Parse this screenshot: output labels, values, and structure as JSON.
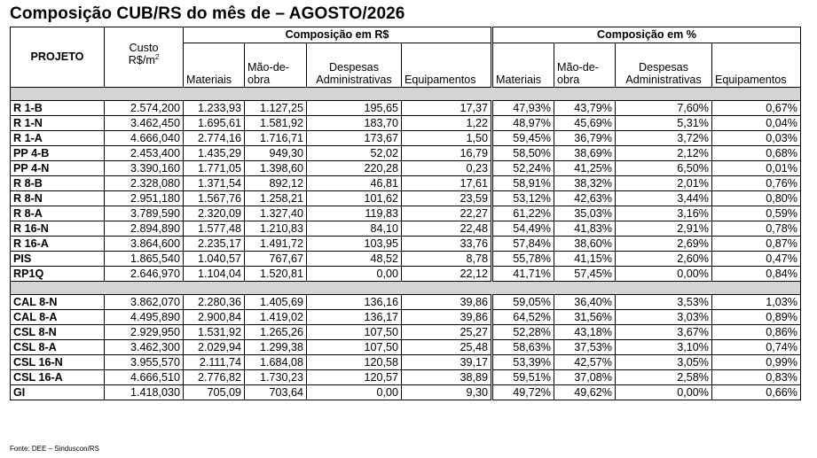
{
  "title": "Composição CUB/RS do mês de – AGOSTO/2026",
  "headers": {
    "projeto": "PROJETO",
    "custo_line1": "Custo",
    "custo_line2": "R$/m",
    "custo_sup": "2",
    "group_rs": "Composição em R$",
    "group_pct": "Composição em %",
    "materiais": "Materiais",
    "mao_line1": "Mão-de-",
    "mao_line2": "obra",
    "despesas_line1": "Despesas",
    "despesas_line2": "Administrativas",
    "equipamentos": "Equipamentos"
  },
  "group1": [
    {
      "projeto": "R 1-B",
      "custo": "2.574,200",
      "mat": "1.233,93",
      "mao": "1.127,25",
      "desp": "195,65",
      "equip": "17,37",
      "mat_p": "47,93%",
      "mao_p": "43,79%",
      "desp_p": "7,60%",
      "equip_p": "0,67%"
    },
    {
      "projeto": "R 1-N",
      "custo": "3.462,450",
      "mat": "1.695,61",
      "mao": "1.581,92",
      "desp": "183,70",
      "equip": "1,22",
      "mat_p": "48,97%",
      "mao_p": "45,69%",
      "desp_p": "5,31%",
      "equip_p": "0,04%"
    },
    {
      "projeto": "R 1-A",
      "custo": "4.666,040",
      "mat": "2.774,16",
      "mao": "1.716,71",
      "desp": "173,67",
      "equip": "1,50",
      "mat_p": "59,45%",
      "mao_p": "36,79%",
      "desp_p": "3,72%",
      "equip_p": "0,03%"
    },
    {
      "projeto": "PP 4-B",
      "custo": "2.453,400",
      "mat": "1.435,29",
      "mao": "949,30",
      "desp": "52,02",
      "equip": "16,79",
      "mat_p": "58,50%",
      "mao_p": "38,69%",
      "desp_p": "2,12%",
      "equip_p": "0,68%"
    },
    {
      "projeto": "PP 4-N",
      "custo": "3.390,160",
      "mat": "1.771,05",
      "mao": "1.398,60",
      "desp": "220,28",
      "equip": "0,23",
      "mat_p": "52,24%",
      "mao_p": "41,25%",
      "desp_p": "6,50%",
      "equip_p": "0,01%"
    },
    {
      "projeto": "R 8-B",
      "custo": "2.328,080",
      "mat": "1.371,54",
      "mao": "892,12",
      "desp": "46,81",
      "equip": "17,61",
      "mat_p": "58,91%",
      "mao_p": "38,32%",
      "desp_p": "2,01%",
      "equip_p": "0,76%"
    },
    {
      "projeto": "R 8-N",
      "custo": "2.951,180",
      "mat": "1.567,76",
      "mao": "1.258,21",
      "desp": "101,62",
      "equip": "23,59",
      "mat_p": "53,12%",
      "mao_p": "42,63%",
      "desp_p": "3,44%",
      "equip_p": "0,80%"
    },
    {
      "projeto": "R 8-A",
      "custo": "3.789,590",
      "mat": "2.320,09",
      "mao": "1.327,40",
      "desp": "119,83",
      "equip": "22,27",
      "mat_p": "61,22%",
      "mao_p": "35,03%",
      "desp_p": "3,16%",
      "equip_p": "0,59%"
    },
    {
      "projeto": "R 16-N",
      "custo": "2.894,890",
      "mat": "1.577,48",
      "mao": "1.210,83",
      "desp": "84,10",
      "equip": "22,48",
      "mat_p": "54,49%",
      "mao_p": "41,83%",
      "desp_p": "2,91%",
      "equip_p": "0,78%"
    },
    {
      "projeto": "R 16-A",
      "custo": "3.864,600",
      "mat": "2.235,17",
      "mao": "1.491,72",
      "desp": "103,95",
      "equip": "33,76",
      "mat_p": "57,84%",
      "mao_p": "38,60%",
      "desp_p": "2,69%",
      "equip_p": "0,87%"
    },
    {
      "projeto": "PIS",
      "custo": "1.865,540",
      "mat": "1.040,57",
      "mao": "767,67",
      "desp": "48,52",
      "equip": "8,78",
      "mat_p": "55,78%",
      "mao_p": "41,15%",
      "desp_p": "2,60%",
      "equip_p": "0,47%"
    },
    {
      "projeto": "RP1Q",
      "custo": "2.646,970",
      "mat": "1.104,04",
      "mao": "1.520,81",
      "desp": "0,00",
      "equip": "22,12",
      "mat_p": "41,71%",
      "mao_p": "57,45%",
      "desp_p": "0,00%",
      "equip_p": "0,84%"
    }
  ],
  "group2": [
    {
      "projeto": "CAL 8-N",
      "custo": "3.862,070",
      "mat": "2.280,36",
      "mao": "1.405,69",
      "desp": "136,16",
      "equip": "39,86",
      "mat_p": "59,05%",
      "mao_p": "36,40%",
      "desp_p": "3,53%",
      "equip_p": "1,03%"
    },
    {
      "projeto": "CAL 8-A",
      "custo": "4.495,890",
      "mat": "2.900,84",
      "mao": "1.419,02",
      "desp": "136,17",
      "equip": "39,86",
      "mat_p": "64,52%",
      "mao_p": "31,56%",
      "desp_p": "3,03%",
      "equip_p": "0,89%"
    },
    {
      "projeto": "CSL 8-N",
      "custo": "2.929,950",
      "mat": "1.531,92",
      "mao": "1.265,26",
      "desp": "107,50",
      "equip": "25,27",
      "mat_p": "52,28%",
      "mao_p": "43,18%",
      "desp_p": "3,67%",
      "equip_p": "0,86%"
    },
    {
      "projeto": "CSL 8-A",
      "custo": "3.462,300",
      "mat": "2.029,94",
      "mao": "1.299,38",
      "desp": "107,50",
      "equip": "25,48",
      "mat_p": "58,63%",
      "mao_p": "37,53%",
      "desp_p": "3,10%",
      "equip_p": "0,74%"
    },
    {
      "projeto": "CSL 16-N",
      "custo": "3.955,570",
      "mat": "2.111,74",
      "mao": "1.684,08",
      "desp": "120,58",
      "equip": "39,17",
      "mat_p": "53,39%",
      "mao_p": "42,57%",
      "desp_p": "3,05%",
      "equip_p": "0,99%"
    },
    {
      "projeto": "CSL 16-A",
      "custo": "4.666,510",
      "mat": "2.776,82",
      "mao": "1.730,23",
      "desp": "120,57",
      "equip": "38,89",
      "mat_p": "59,51%",
      "mao_p": "37,08%",
      "desp_p": "2,58%",
      "equip_p": "0,83%"
    },
    {
      "projeto": "GI",
      "custo": "1.418,030",
      "mat": "705,09",
      "mao": "703,64",
      "desp": "0,00",
      "equip": "9,30",
      "mat_p": "49,72%",
      "mao_p": "49,62%",
      "desp_p": "0,00%",
      "equip_p": "0,66%"
    }
  ],
  "source": "Fonte: DEE – Sinduscon/RS"
}
